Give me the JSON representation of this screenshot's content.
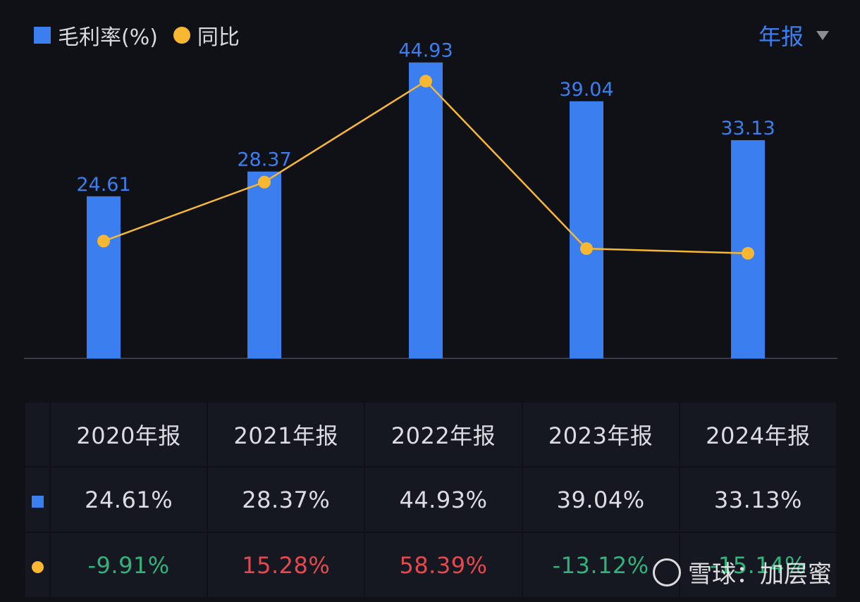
{
  "legend": {
    "bar_label": "毛利率(%)",
    "line_label": "同比"
  },
  "period_selector": {
    "label": "年报"
  },
  "chart_data": {
    "type": "bar",
    "categories": [
      "2020年报",
      "2021年报",
      "2022年报",
      "2023年报",
      "2024年报"
    ],
    "series": [
      {
        "name": "毛利率(%)",
        "type": "bar",
        "values": [
          24.61,
          28.37,
          44.93,
          39.04,
          33.13
        ],
        "color": "#3a7ef0"
      },
      {
        "name": "同比",
        "type": "line",
        "values": [
          -9.91,
          15.28,
          58.39,
          -13.12,
          -15.14
        ],
        "color": "#f7b731"
      }
    ],
    "bar_labels": [
      "24.61",
      "28.37",
      "44.93",
      "39.04",
      "33.13"
    ],
    "ylim_bar": [
      0,
      48
    ],
    "ylim_line": [
      -60,
      75
    ],
    "grid": false
  },
  "table": {
    "headers": [
      "2020年报",
      "2021年报",
      "2022年报",
      "2023年报",
      "2024年报"
    ],
    "row_bar": [
      "24.61%",
      "28.37%",
      "44.93%",
      "39.04%",
      "33.13%"
    ],
    "row_line": [
      "-9.91%",
      "15.28%",
      "58.39%",
      "-13.12%",
      "-15.14%"
    ]
  },
  "colors": {
    "background": "#0f1117",
    "bar": "#3a7ef0",
    "line": "#f7b731",
    "positive": "#e5484d",
    "negative": "#2fb37b"
  },
  "watermark": {
    "text": "雪球：加层蜜"
  }
}
